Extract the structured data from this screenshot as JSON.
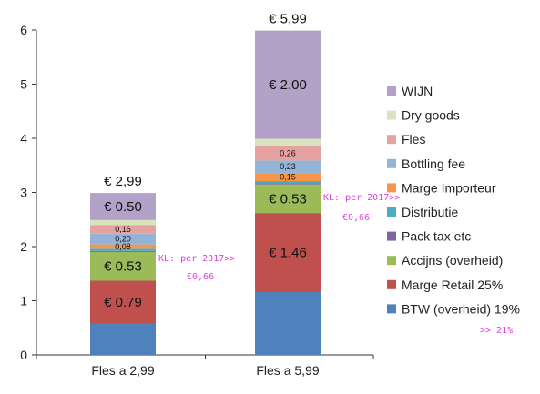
{
  "chart_data": {
    "type": "bar",
    "stacked": true,
    "categories": [
      "Fles a 2,99",
      "Fles a 5,99"
    ],
    "ylim": [
      0,
      6
    ],
    "yticks": [
      0,
      1,
      2,
      3,
      4,
      5,
      6
    ],
    "grid": false,
    "legend_position": "right",
    "totals": [
      "€ 2,99",
      "€ 5,99"
    ],
    "series": [
      {
        "name": "BTW (overheid) 19%",
        "color": "#4f81bd",
        "values": [
          0.58,
          1.16
        ],
        "labels": [
          "",
          ""
        ]
      },
      {
        "name": "Marge Retail 25%",
        "color": "#c0504d",
        "values": [
          0.79,
          1.46
        ],
        "labels": [
          "€ 0.79",
          "€ 1.46"
        ]
      },
      {
        "name": "Accijns (overheid)",
        "color": "#9bbb59",
        "values": [
          0.53,
          0.53
        ],
        "labels": [
          "€ 0.53",
          "€ 0.53"
        ]
      },
      {
        "name": "Pack tax etc",
        "color": "#8064a2",
        "values": [
          0.02,
          0.02
        ],
        "labels": [
          "",
          ""
        ]
      },
      {
        "name": "Distributie",
        "color": "#4bacc6",
        "values": [
          0.04,
          0.04
        ],
        "labels": [
          "",
          ""
        ]
      },
      {
        "name": "Marge Importeur",
        "color": "#f79646",
        "values": [
          0.08,
          0.15
        ],
        "labels": [
          "0,08",
          "0,15"
        ]
      },
      {
        "name": "Bottling fee",
        "color": "#95b3d7",
        "values": [
          0.2,
          0.23
        ],
        "labels": [
          "0,20",
          "0,23"
        ]
      },
      {
        "name": "Fles",
        "color": "#e6a1a1",
        "values": [
          0.16,
          0.26
        ],
        "labels": [
          "0,16",
          "0,26"
        ]
      },
      {
        "name": "Dry goods",
        "color": "#d7e4bd",
        "values": [
          0.09,
          0.14
        ],
        "labels": [
          "",
          ""
        ]
      },
      {
        "name": "WIJN",
        "color": "#b3a2c7",
        "values": [
          0.5,
          2.0
        ],
        "labels": [
          "€ 0.50",
          "€ 2.00"
        ]
      }
    ],
    "annotations": [
      {
        "text": "KL: per 2017>>",
        "anchor": "bar1-right"
      },
      {
        "text": "€0,66",
        "anchor": "bar1-right"
      },
      {
        "text": "KL: per 2017>>",
        "anchor": "bar2-right"
      },
      {
        "text": "€0,66",
        "anchor": "bar2-right"
      },
      {
        "text": ">> 21%",
        "anchor": "legend-btw"
      }
    ]
  }
}
